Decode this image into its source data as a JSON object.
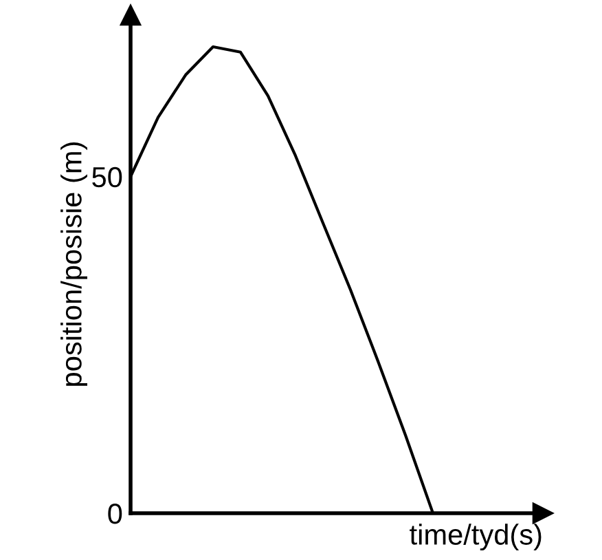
{
  "chart_data": {
    "type": "line",
    "xlabel": "time/tyd(s)",
    "ylabel": "position/posisie (m)",
    "categories": [
      null,
      null,
      null,
      null,
      null,
      null,
      null,
      null,
      null,
      null,
      null,
      null
    ],
    "series": [
      {
        "color": "#000000",
        "values": [
          50,
          58.8,
          65.1,
          69.3,
          68.5,
          62,
          53.1,
          43.1,
          33.2,
          22.6,
          11.6,
          0
        ]
      }
    ],
    "ylim": [
      0,
      74
    ],
    "yticks": [
      0,
      50
    ],
    "grid": false,
    "legend": false,
    "marker": "none",
    "line_style": "solid"
  }
}
